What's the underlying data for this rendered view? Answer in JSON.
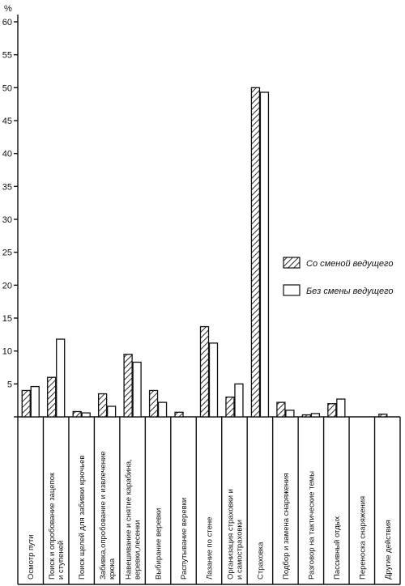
{
  "chart_data": {
    "type": "bar",
    "ylabel": "%",
    "ylim": [
      0,
      60
    ],
    "yticks": [
      0,
      5,
      10,
      15,
      20,
      25,
      30,
      35,
      40,
      45,
      50,
      55,
      60
    ],
    "yticklabels": [
      "",
      "5",
      "10",
      "15",
      "20",
      "25",
      "30",
      "35",
      "40",
      "45",
      "50",
      "55",
      "60"
    ],
    "grid": false,
    "legend_position": "right",
    "categories": [
      [
        "Осмотр пути"
      ],
      [
        "Поиск и опробование зацепок",
        "и ступеней"
      ],
      [
        "Поиск щелей для забивки крючьев"
      ],
      [
        "Забивка,опробование и извлечение",
        "крюка"
      ],
      [
        "Навешивание и снятие карабина,",
        "веревки,лесенки"
      ],
      [
        "Выбирание веревки"
      ],
      [
        "Распутывание веревки"
      ],
      [
        "Лазание по стене"
      ],
      [
        "Организация страховки и",
        "и самостраховки"
      ],
      [
        "Страховка"
      ],
      [
        "Подбор и замена снаряжения"
      ],
      [
        "Разговор на тактические темы"
      ],
      [
        "Пассивный отдых"
      ],
      [
        "Переноска снаряжения"
      ],
      [
        "Другие действия"
      ]
    ],
    "series": [
      {
        "name": "Со сменой ведущего",
        "pattern": "hatched",
        "values": [
          4,
          6,
          0.8,
          3.5,
          9.5,
          4,
          0.7,
          13.7,
          3,
          50,
          2.2,
          0.3,
          2,
          0,
          0.4
        ]
      },
      {
        "name": "Без смены ведущего",
        "pattern": "plain",
        "values": [
          4.6,
          11.8,
          0.6,
          1.6,
          8.3,
          2.2,
          0,
          11.2,
          5,
          49.3,
          1,
          0.5,
          2.7,
          0,
          0
        ]
      }
    ]
  },
  "colors": {
    "ink": "#111111",
    "paper": "#ffffff"
  }
}
